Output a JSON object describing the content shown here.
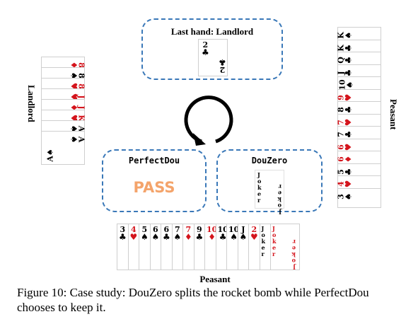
{
  "top_box": {
    "title": "Last hand: Landlord",
    "card": {
      "rank": "2",
      "suit": "♣",
      "color": "black"
    }
  },
  "landlord": {
    "label": "Landlord",
    "cards": [
      {
        "rank": "8",
        "suit": "♦",
        "color": "red"
      },
      {
        "rank": "8",
        "suit": "♠",
        "color": "black"
      },
      {
        "rank": "8",
        "suit": "♥",
        "color": "red"
      },
      {
        "rank": "J",
        "suit": "♥",
        "color": "red"
      },
      {
        "rank": "J",
        "suit": "♦",
        "color": "red"
      },
      {
        "rank": "K",
        "suit": "♥",
        "color": "red"
      },
      {
        "rank": "A",
        "suit": "♠",
        "color": "black"
      },
      {
        "rank": "A",
        "suit": "♠",
        "color": "black"
      }
    ]
  },
  "right_peasant": {
    "label": "Peasant",
    "cards": [
      {
        "rank": "K",
        "suit": "♠",
        "color": "black"
      },
      {
        "rank": "K",
        "suit": "♣",
        "color": "black"
      },
      {
        "rank": "Q",
        "suit": "♣",
        "color": "black"
      },
      {
        "rank": "J",
        "suit": "♣",
        "color": "black"
      },
      {
        "rank": "10",
        "suit": "♠",
        "color": "black"
      },
      {
        "rank": "9",
        "suit": "♥",
        "color": "red"
      },
      {
        "rank": "8",
        "suit": "♣",
        "color": "black"
      },
      {
        "rank": "7",
        "suit": "♥",
        "color": "red"
      },
      {
        "rank": "7",
        "suit": "♣",
        "color": "black"
      },
      {
        "rank": "6",
        "suit": "♥",
        "color": "red"
      },
      {
        "rank": "6",
        "suit": "♦",
        "color": "red"
      },
      {
        "rank": "5",
        "suit": "♣",
        "color": "black"
      },
      {
        "rank": "4",
        "suit": "♥",
        "color": "red"
      },
      {
        "rank": "3",
        "suit": "♠",
        "color": "black"
      }
    ]
  },
  "perfectdou": {
    "title": "PerfectDou",
    "action": "PASS"
  },
  "douzero": {
    "title": "DouZero",
    "joker": "Joker"
  },
  "bottom_peasant": {
    "label": "Peasant",
    "cards": [
      {
        "rank": "3",
        "suit": "♣",
        "color": "black"
      },
      {
        "rank": "4",
        "suit": "♥",
        "color": "red"
      },
      {
        "rank": "5",
        "suit": "♠",
        "color": "black"
      },
      {
        "rank": "6",
        "suit": "♠",
        "color": "black"
      },
      {
        "rank": "6",
        "suit": "♣",
        "color": "black"
      },
      {
        "rank": "7",
        "suit": "♠",
        "color": "black"
      },
      {
        "rank": "7",
        "suit": "♦",
        "color": "red"
      },
      {
        "rank": "9",
        "suit": "♣",
        "color": "black"
      },
      {
        "rank": "10",
        "suit": "♦",
        "color": "red"
      },
      {
        "rank": "10",
        "suit": "♣",
        "color": "black"
      },
      {
        "rank": "10",
        "suit": "♠",
        "color": "black"
      },
      {
        "rank": "J",
        "suit": "♠",
        "color": "black"
      },
      {
        "rank": "2",
        "suit": "♥",
        "color": "red"
      }
    ],
    "joker": "Joker"
  },
  "caption": "Figure 10: Case study: DouZero splits the rocket bomb while PerfectDou chooses to keep it."
}
